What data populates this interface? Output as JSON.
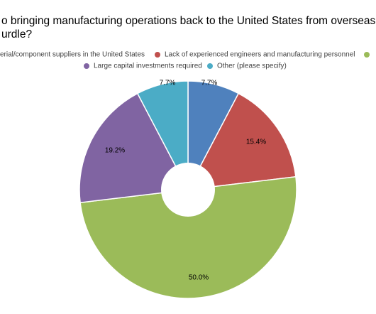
{
  "chart_data": {
    "type": "pie",
    "title_lines": [
      "o bringing manufacturing operations back to the United States from overseas, w",
      "urdle?"
    ],
    "categories": [
      "erial/component suppliers in the United States",
      "Lack of experienced engineers and manufacturing personnel",
      null,
      "Large capital investments required",
      "Other (please specify)"
    ],
    "colors": [
      "#4f81bd",
      "#c0504d",
      "#9bbb59",
      "#8064a2",
      "#4bacc6"
    ],
    "values": [
      7.7,
      15.4,
      50,
      19.2,
      7.7
    ],
    "value_labels": [
      "7.7%",
      "15.4%",
      "50.0%",
      "19.2%",
      "7.7%"
    ]
  }
}
